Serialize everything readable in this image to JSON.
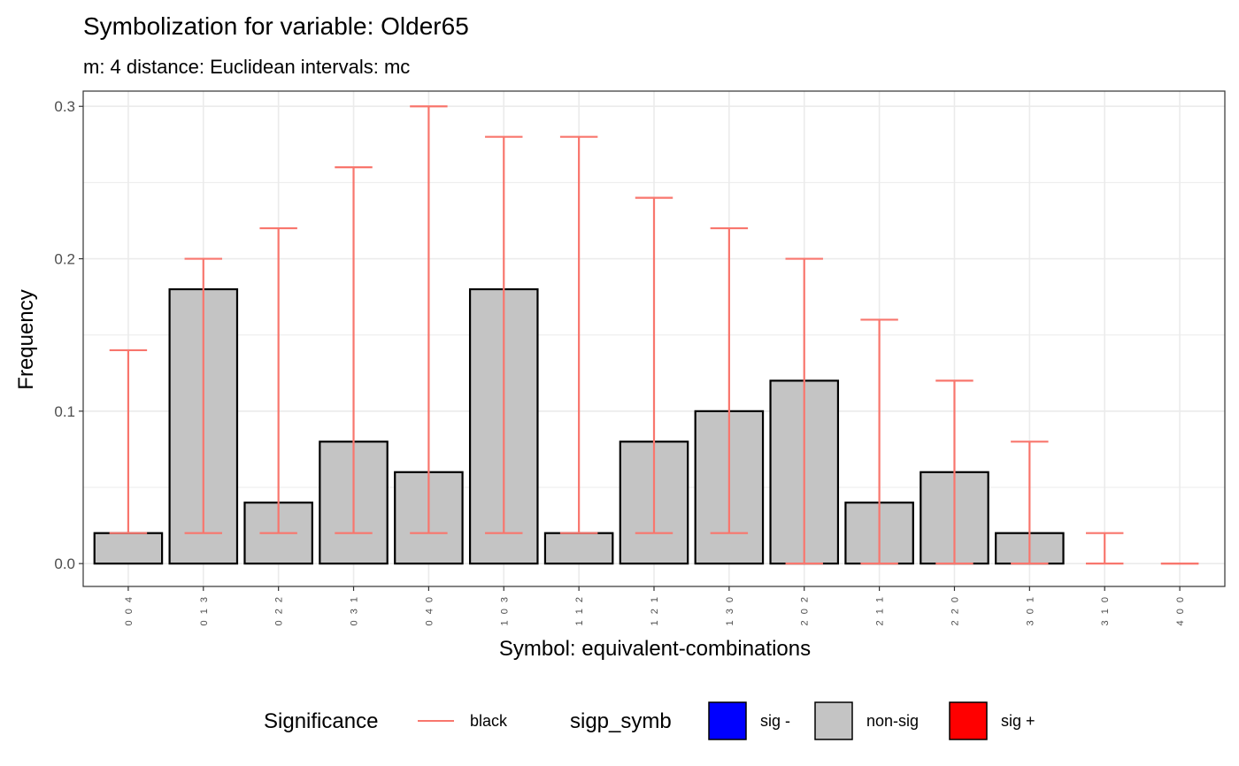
{
  "chart_data": {
    "type": "bar",
    "title": "Symbolization for variable: Older65",
    "subtitle": "m: 4  distance:  Euclidean  intervals:  mc",
    "xlabel": "Symbol: equivalent-combinations",
    "ylabel": "Frequency",
    "ylim": [
      -0.015,
      0.31
    ],
    "yticks": [
      "0.0",
      "0.1",
      "0.2",
      "0.3"
    ],
    "ytick_values": [
      0.0,
      0.1,
      0.2,
      0.3
    ],
    "grid": true,
    "categories": [
      "0 0 4",
      "0 1 3",
      "0 2 2",
      "0 3 1",
      "0 4 0",
      "1 0 3",
      "1 1 2",
      "1 2 1",
      "1 3 0",
      "2 0 2",
      "2 1 1",
      "2 2 0",
      "3 0 1",
      "3 1 0",
      "4 0 0"
    ],
    "values": [
      0.02,
      0.18,
      0.04,
      0.08,
      0.06,
      0.18,
      0.02,
      0.08,
      0.1,
      0.12,
      0.04,
      0.06,
      0.02,
      0.0,
      0.0
    ],
    "interval_lower": [
      0.02,
      0.02,
      0.02,
      0.02,
      0.02,
      0.02,
      0.02,
      0.02,
      0.02,
      0.0,
      0.0,
      0.0,
      0.0,
      0.0,
      0.0
    ],
    "interval_upper": [
      0.14,
      0.2,
      0.22,
      0.26,
      0.3,
      0.28,
      0.28,
      0.24,
      0.22,
      0.2,
      0.16,
      0.12,
      0.08,
      0.02,
      0.0
    ],
    "significance": [
      "non-sig",
      "non-sig",
      "non-sig",
      "non-sig",
      "non-sig",
      "non-sig",
      "non-sig",
      "non-sig",
      "non-sig",
      "non-sig",
      "non-sig",
      "non-sig",
      "non-sig",
      "non-sig",
      "non-sig"
    ],
    "legend_placement": "bottom",
    "legends": [
      {
        "title": "Significance",
        "entries": [
          {
            "label": "black",
            "color": "#f8766d",
            "shape": "line"
          }
        ]
      },
      {
        "title": "sigp_symb",
        "entries": [
          {
            "label": "sig -",
            "color": "#0000ff",
            "shape": "box"
          },
          {
            "label": "non-sig",
            "color": "#c4c4c4",
            "shape": "box"
          },
          {
            "label": "sig +",
            "color": "#ff0000",
            "shape": "box"
          }
        ]
      }
    ]
  },
  "colors": {
    "bar_fill": "#c4c4c4",
    "bar_stroke": "#000000",
    "errorbar": "#f8766d",
    "grid": "#ebebeb",
    "panel_border": "#333333"
  }
}
